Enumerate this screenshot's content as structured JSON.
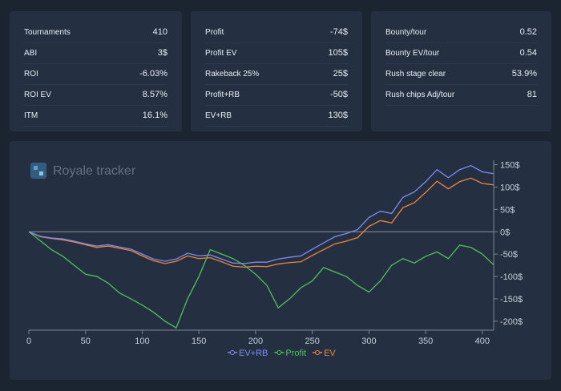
{
  "stats": [
    {
      "rows": [
        {
          "label": "Tournaments",
          "value": "410"
        },
        {
          "label": "ABI",
          "value": "3$"
        },
        {
          "label": "ROI",
          "value": "-6.03%"
        },
        {
          "label": "ROI EV",
          "value": "8.57%"
        },
        {
          "label": "ITM",
          "value": "16.1%"
        }
      ]
    },
    {
      "rows": [
        {
          "label": "Profit",
          "value": "-74$"
        },
        {
          "label": "Profit EV",
          "value": "105$"
        },
        {
          "label": "Rakeback 25%",
          "value": "25$"
        },
        {
          "label": "Profit+RB",
          "value": "-50$"
        },
        {
          "label": "EV+RB",
          "value": "130$"
        }
      ]
    },
    {
      "rows": [
        {
          "label": "Bounty/tour",
          "value": "0.52"
        },
        {
          "label": "Bounty EV/tour",
          "value": "0.54"
        },
        {
          "label": "Rush stage clear",
          "value": "53.9%"
        },
        {
          "label": "Rush chips Adj/tour",
          "value": "81"
        }
      ]
    }
  ],
  "logo": "Royale tracker",
  "chart_data": {
    "type": "line",
    "x": [
      0,
      10,
      20,
      30,
      40,
      50,
      60,
      70,
      80,
      90,
      100,
      110,
      120,
      130,
      140,
      150,
      160,
      170,
      180,
      190,
      200,
      210,
      220,
      230,
      240,
      250,
      260,
      270,
      280,
      290,
      300,
      310,
      320,
      330,
      340,
      350,
      360,
      370,
      380,
      390,
      400,
      410
    ],
    "series": [
      {
        "name": "EV+RB",
        "color": "#7f8cf0",
        "values": [
          0,
          -10,
          -14,
          -16,
          -21,
          -27,
          -32,
          -29,
          -34,
          -39,
          -50,
          -61,
          -66,
          -61,
          -48,
          -54,
          -52,
          -61,
          -70,
          -71,
          -68,
          -68,
          -61,
          -57,
          -54,
          -39,
          -25,
          -11,
          -4,
          5,
          32,
          46,
          41,
          77,
          89,
          112,
          139,
          121,
          139,
          148,
          134,
          130
        ]
      },
      {
        "name": "Profit",
        "color": "#4fc25a",
        "values": [
          0,
          -20,
          -40,
          -55,
          -75,
          -95,
          -100,
          -115,
          -137,
          -150,
          -164,
          -180,
          -200,
          -215,
          -150,
          -100,
          -40,
          -50,
          -60,
          -75,
          -95,
          -120,
          -170,
          -150,
          -125,
          -110,
          -80,
          -90,
          -100,
          -120,
          -135,
          -110,
          -75,
          -60,
          -70,
          -55,
          -45,
          -60,
          -30,
          -35,
          -50,
          -74
        ]
      },
      {
        "name": "EV",
        "color": "#f0843c",
        "values": [
          0,
          -11,
          -15,
          -18,
          -23,
          -29,
          -35,
          -32,
          -37,
          -42,
          -54,
          -65,
          -71,
          -66,
          -54,
          -60,
          -58,
          -67,
          -77,
          -79,
          -77,
          -78,
          -72,
          -69,
          -67,
          -53,
          -40,
          -27,
          -21,
          -13,
          12,
          25,
          20,
          54,
          65,
          88,
          113,
          96,
          112,
          120,
          108,
          105
        ]
      }
    ],
    "xlim": [
      0,
      410
    ],
    "xticks": [
      0,
      50,
      100,
      150,
      200,
      250,
      300,
      350,
      400
    ],
    "ylim": [
      -220,
      160
    ],
    "yticks": [
      {
        "value": 150,
        "label": "150$"
      },
      {
        "value": 100,
        "label": "100$"
      },
      {
        "value": 50,
        "label": "50$"
      },
      {
        "value": 0,
        "label": "0$"
      },
      {
        "value": -50,
        "label": "-50$"
      },
      {
        "value": -100,
        "label": "-100$"
      },
      {
        "value": -150,
        "label": "-150$"
      },
      {
        "value": -200,
        "label": "-200$"
      }
    ]
  }
}
